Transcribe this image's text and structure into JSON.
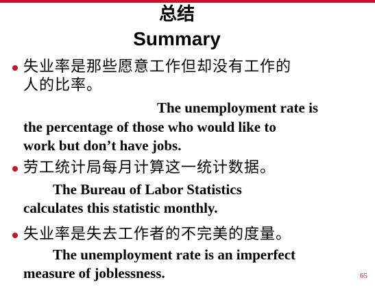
{
  "slide": {
    "title_zh": "总结",
    "title_en": "Summary",
    "page_number": "65",
    "accent_color": "#c8102e"
  },
  "bullets": [
    {
      "zh_lines": [
        "失业率是那些愿意工作但却没有工作的",
        "人的比率。"
      ],
      "en_lines": [
        "The unemployment rate is",
        "the percentage of those who would like to",
        "work but don’t have jobs."
      ]
    },
    {
      "zh_lines": [
        "劳工统计局每月计算这一统计数据。"
      ],
      "en_lines": [
        "The Bureau of Labor Statistics",
        "calculates this statistic monthly."
      ]
    },
    {
      "zh_lines": [
        "失业率是失去工作者的不完美的度量。"
      ],
      "en_lines": [
        "The unemployment rate is an imperfect",
        "measure of joblessness."
      ]
    }
  ]
}
